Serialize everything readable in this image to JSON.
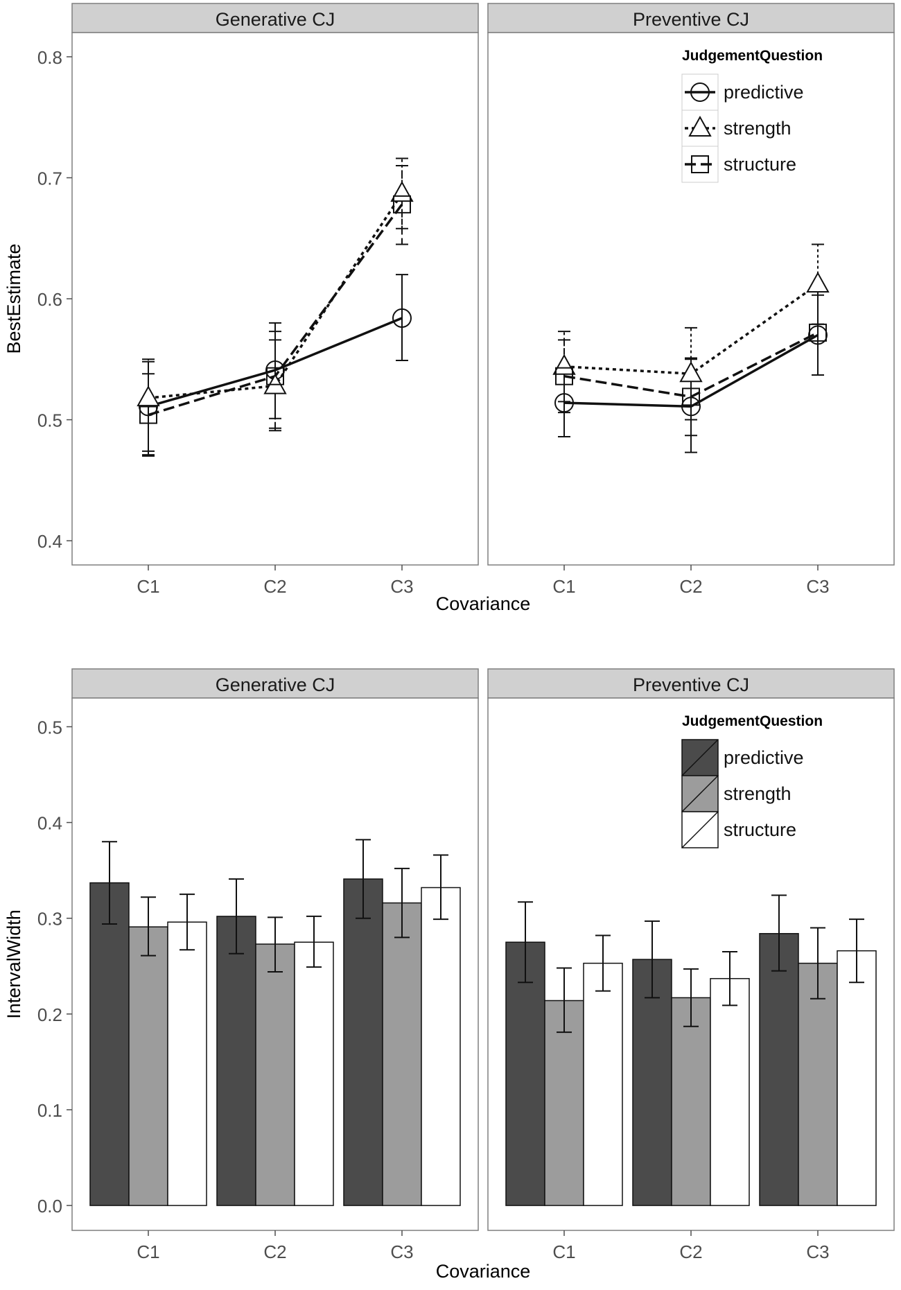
{
  "chart_data": [
    {
      "type": "line",
      "ylabel": "BestEstimate",
      "xlabel": "Covariance",
      "categories": [
        "C1",
        "C2",
        "C3"
      ],
      "ylim": [
        0.38,
        0.82
      ],
      "yticks": [
        "0.4",
        "0.5",
        "0.6",
        "0.7",
        "0.8"
      ],
      "legend": {
        "title": "JudgementQuestion",
        "position": "top-right",
        "entries": [
          "predictive",
          "strength",
          "structure"
        ]
      },
      "panels": [
        {
          "title": "Generative CJ",
          "series": [
            {
              "name": "predictive",
              "values": [
                0.511,
                0.541,
                0.584
              ],
              "lower": [
                0.474,
                0.501,
                0.549
              ],
              "upper": [
                0.548,
                0.58,
                0.62
              ]
            },
            {
              "name": "strength",
              "values": [
                0.518,
                0.528,
                0.687
              ],
              "lower": [
                0.471,
                0.491,
                0.658
              ],
              "upper": [
                0.55,
                0.566,
                0.716
              ]
            },
            {
              "name": "structure",
              "values": [
                0.504,
                0.536,
                0.678
              ],
              "lower": [
                0.47,
                0.493,
                0.645
              ],
              "upper": [
                0.538,
                0.573,
                0.71
              ]
            }
          ]
        },
        {
          "title": "Preventive CJ",
          "series": [
            {
              "name": "predictive",
              "values": [
                0.514,
                0.511,
                0.57
              ],
              "lower": [
                0.486,
                0.473,
                0.537
              ],
              "upper": [
                0.542,
                0.55,
                0.603
              ]
            },
            {
              "name": "strength",
              "values": [
                0.544,
                0.538,
                0.612
              ],
              "lower": [
                0.515,
                0.5,
                0.579
              ],
              "upper": [
                0.573,
                0.576,
                0.645
              ]
            },
            {
              "name": "structure",
              "values": [
                0.536,
                0.519,
                0.572
              ],
              "lower": [
                0.506,
                0.487,
                0.537
              ],
              "upper": [
                0.566,
                0.551,
                0.606
              ]
            }
          ]
        }
      ]
    },
    {
      "type": "bar",
      "ylabel": "IntervalWidth",
      "xlabel": "Covariance",
      "categories": [
        "C1",
        "C2",
        "C3"
      ],
      "ylim": [
        -0.026,
        0.53
      ],
      "yticks": [
        "0.0",
        "0.1",
        "0.2",
        "0.3",
        "0.4",
        "0.5"
      ],
      "legend": {
        "title": "JudgementQuestion",
        "position": "top-right",
        "entries": [
          "predictive",
          "strength",
          "structure"
        ]
      },
      "panels": [
        {
          "title": "Generative CJ",
          "series": [
            {
              "name": "predictive",
              "values": [
                0.337,
                0.302,
                0.341
              ],
              "lower": [
                0.294,
                0.263,
                0.3
              ],
              "upper": [
                0.38,
                0.341,
                0.382
              ]
            },
            {
              "name": "strength",
              "values": [
                0.291,
                0.273,
                0.316
              ],
              "lower": [
                0.261,
                0.244,
                0.28
              ],
              "upper": [
                0.322,
                0.301,
                0.352
              ]
            },
            {
              "name": "structure",
              "values": [
                0.296,
                0.275,
                0.332
              ],
              "lower": [
                0.267,
                0.249,
                0.299
              ],
              "upper": [
                0.325,
                0.302,
                0.366
              ]
            }
          ]
        },
        {
          "title": "Preventive CJ",
          "series": [
            {
              "name": "predictive",
              "values": [
                0.275,
                0.257,
                0.284
              ],
              "lower": [
                0.233,
                0.217,
                0.245
              ],
              "upper": [
                0.317,
                0.297,
                0.324
              ]
            },
            {
              "name": "strength",
              "values": [
                0.214,
                0.217,
                0.253
              ],
              "lower": [
                0.181,
                0.187,
                0.216
              ],
              "upper": [
                0.248,
                0.247,
                0.29
              ]
            },
            {
              "name": "structure",
              "values": [
                0.253,
                0.237,
                0.266
              ],
              "lower": [
                0.224,
                0.209,
                0.233
              ],
              "upper": [
                0.282,
                0.265,
                0.299
              ]
            }
          ]
        }
      ]
    }
  ],
  "colors": {
    "strip_fill": "#d0d0d0",
    "panel_border": "#7f7f7f",
    "axis_text": "#4d4d4d",
    "bar_fills": [
      "#4b4b4b",
      "#9c9c9c",
      "#ffffff"
    ],
    "line_color": "#111111"
  }
}
